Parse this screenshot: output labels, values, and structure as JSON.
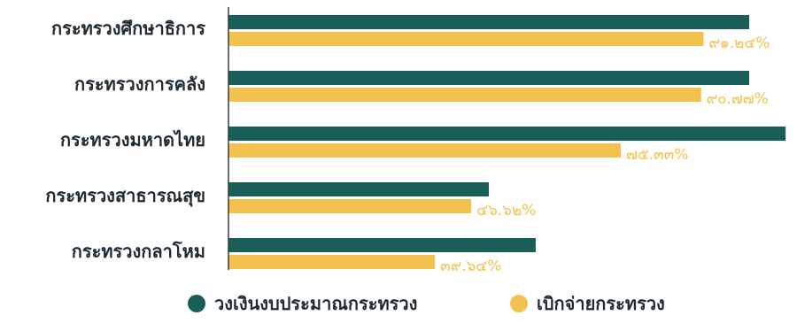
{
  "chart_data": {
    "type": "bar",
    "orientation": "horizontal",
    "categories": [
      "กระทรวงศึกษาธิการ",
      "กระทรวงการคลัง",
      "กระทรวงมหาดไทย",
      "กระทรวงสาธารณสุข",
      "กระทรวงกลาโหม"
    ],
    "series": [
      {
        "name": "วงเงินงบประมาณกระทรวง",
        "color": "#1a5e5a",
        "values": [
          100,
          100,
          107,
          50,
          59
        ]
      },
      {
        "name": "เบิกจ่ายกระทรวง",
        "color": "#f2c14e",
        "values": [
          91.24,
          90.77,
          75.33,
          46.62,
          39.64
        ],
        "labels": [
          "๙๑.๒๔%",
          "๙๐.๗๗%",
          "๗๕.๓๓%",
          "๔๖.๖๒%",
          "๓๙.๖๔%"
        ]
      }
    ],
    "xlim": [
      0,
      108
    ],
    "grid": false,
    "legend_position": "bottom"
  }
}
